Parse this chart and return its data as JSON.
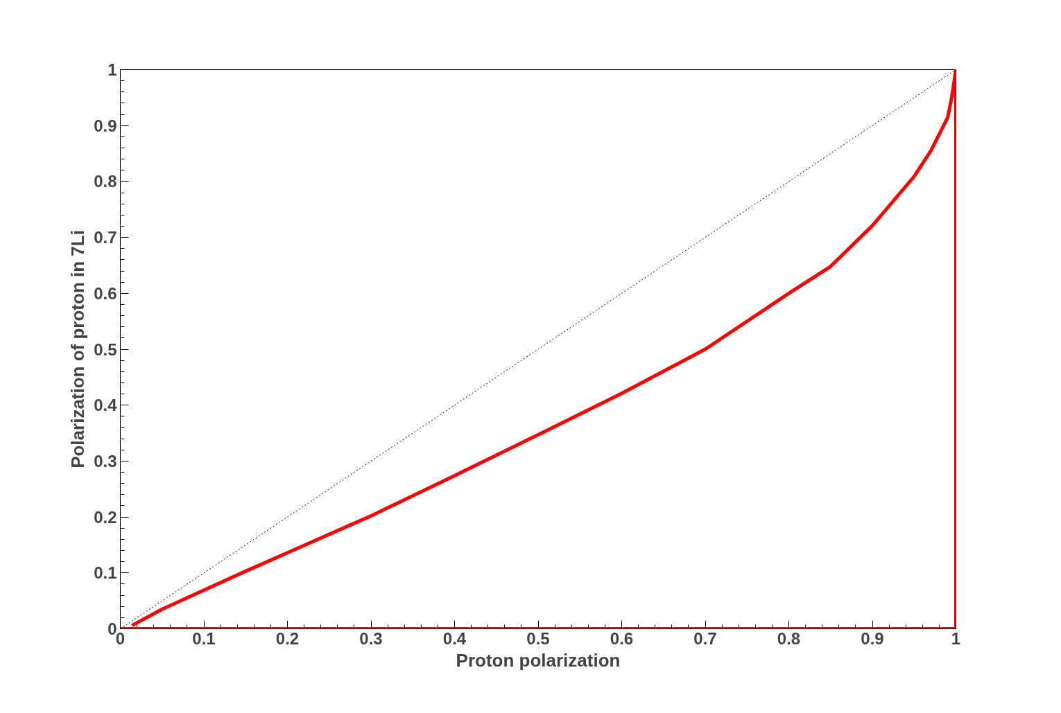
{
  "chart_data": {
    "type": "line",
    "xlabel": "Proton polarization",
    "ylabel": "Polarization of proton in 7Li",
    "xlim": [
      0,
      1
    ],
    "ylim": [
      0,
      1
    ],
    "xticks": [
      0,
      0.1,
      0.2,
      0.3,
      0.4,
      0.5,
      0.6,
      0.7,
      0.8,
      0.9,
      1
    ],
    "yticks": [
      0,
      0.1,
      0.2,
      0.3,
      0.4,
      0.5,
      0.6,
      0.7,
      0.8,
      0.9,
      1
    ],
    "grid": false,
    "series": [
      {
        "color": "#ff0000",
        "line_style": "solid",
        "x": [
          0.014,
          0.05,
          0.1,
          0.15,
          0.2,
          0.3,
          0.4,
          0.5,
          0.6,
          0.7,
          0.8,
          0.85,
          0.9,
          0.95,
          0.97,
          0.99,
          0.995,
          1,
          1,
          0
        ],
        "values": [
          0.006,
          0.035,
          0.069,
          0.103,
          0.136,
          0.202,
          0.274,
          0.347,
          0.421,
          0.5,
          0.6,
          0.648,
          0.721,
          0.809,
          0.855,
          0.914,
          0.95,
          1,
          0,
          0
        ]
      },
      {
        "color": "#000000",
        "line_style": "dotted",
        "x": [
          0,
          1
        ],
        "values": [
          0,
          1
        ]
      }
    ]
  }
}
